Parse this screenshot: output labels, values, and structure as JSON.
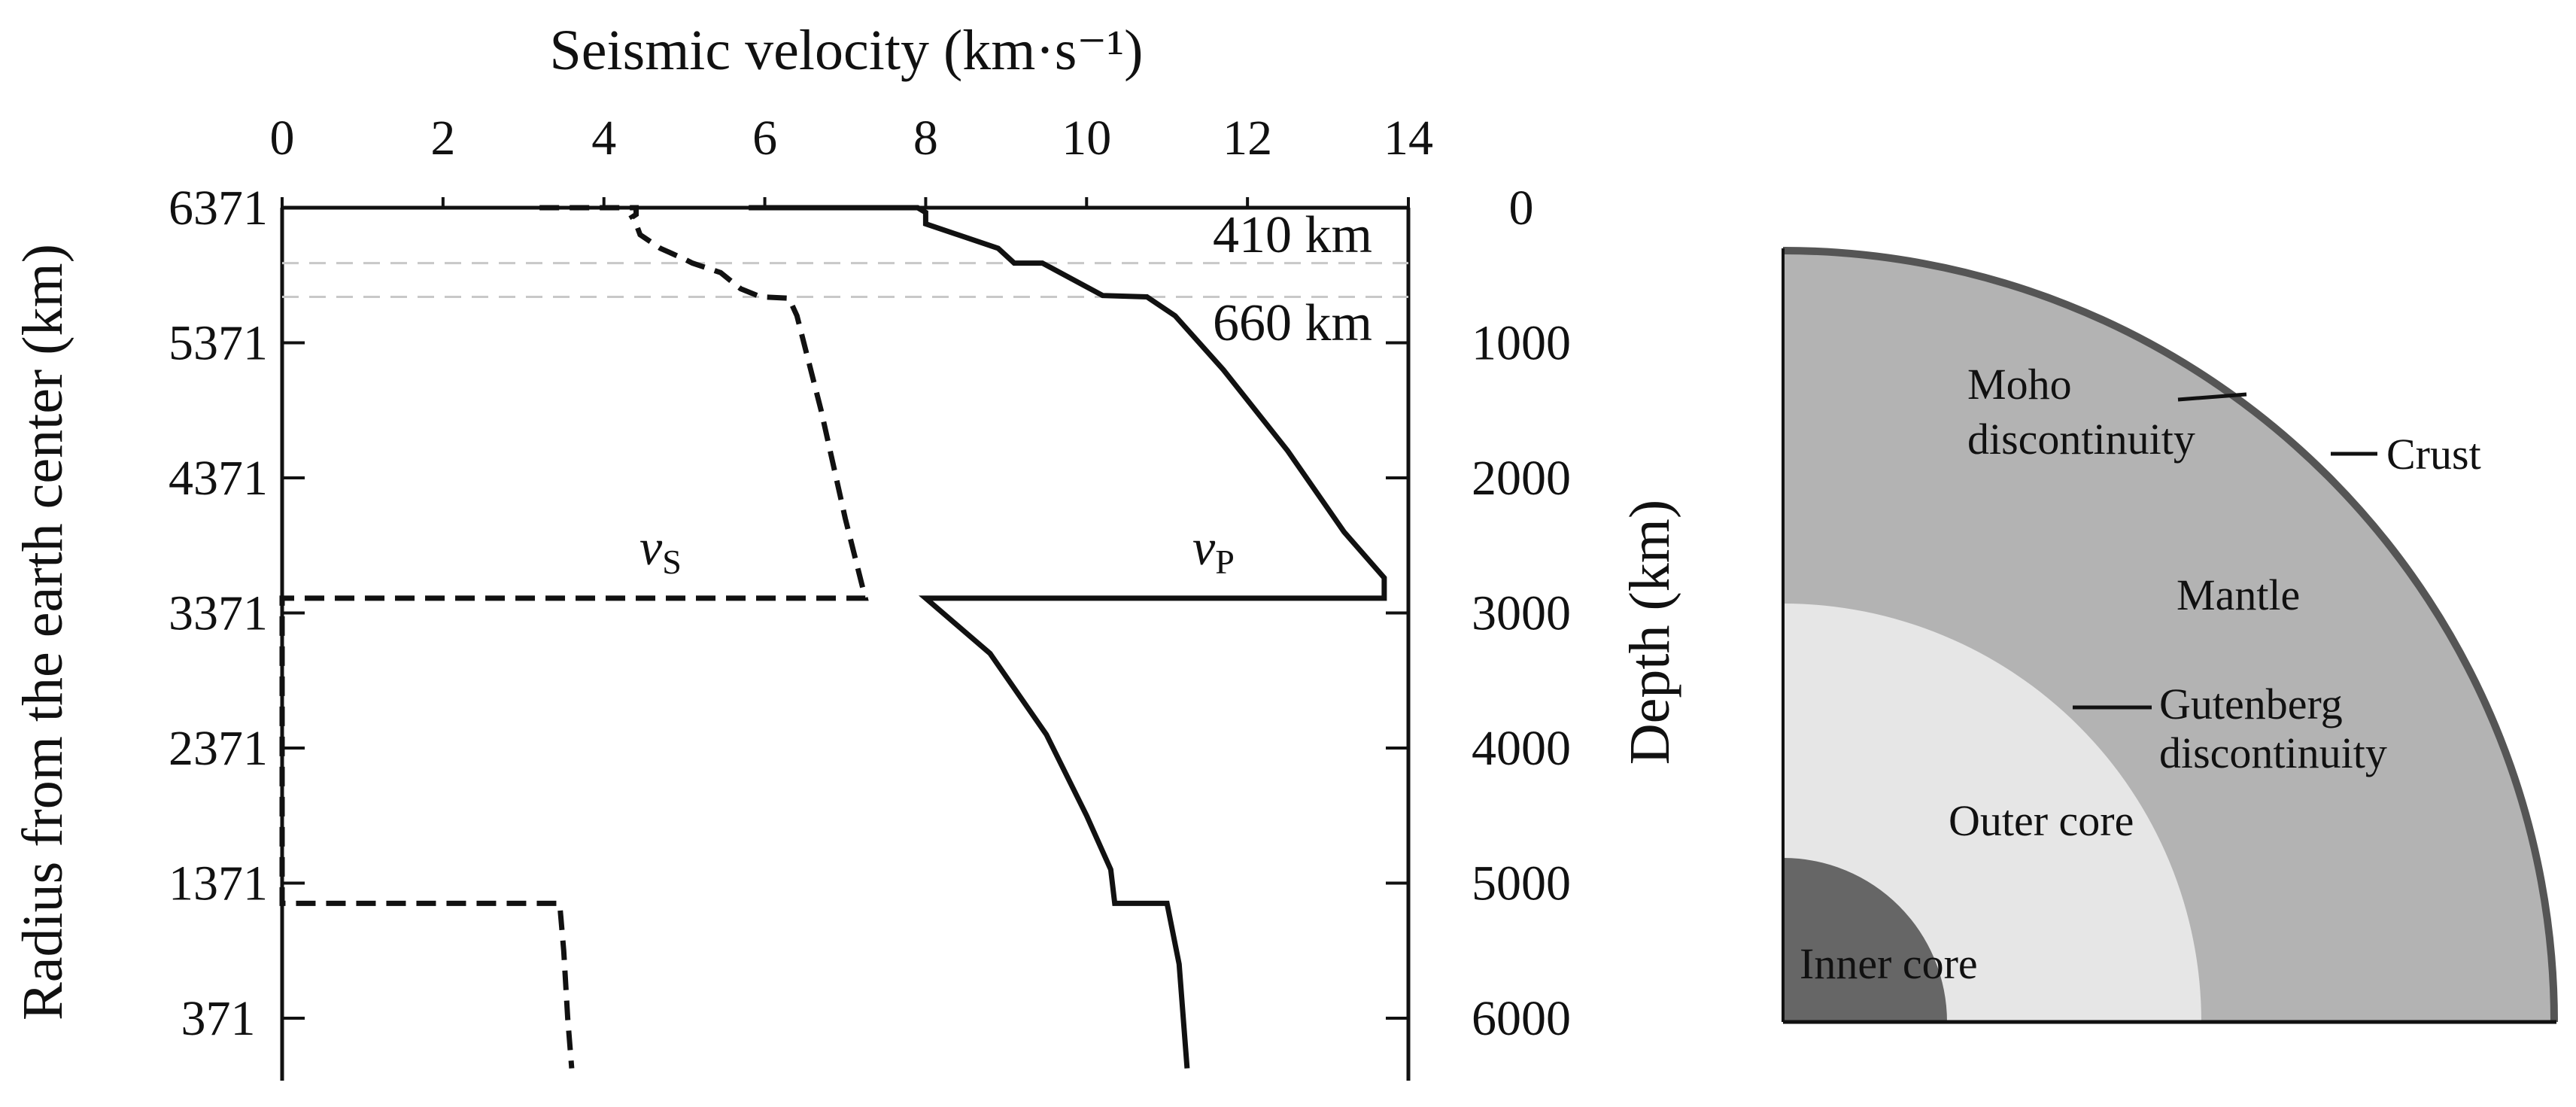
{
  "chart_data": {
    "type": "line",
    "title": "",
    "xlabel": "Seismic velocity (km·s⁻¹)",
    "ylabel_left": "Radius from the earth center (km)",
    "ylabel_right": "Depth (km)",
    "xlim": [
      0,
      14
    ],
    "x_ticks": [
      "0",
      "2",
      "4",
      "6",
      "8",
      "10",
      "12",
      "14"
    ],
    "depth_lim": [
      0,
      6371
    ],
    "left_ticks": [
      "6371",
      "5371",
      "4371",
      "3371",
      "2371",
      "1371",
      "371"
    ],
    "right_ticks": [
      "0",
      "1000",
      "2000",
      "3000",
      "4000",
      "5000",
      "6000"
    ],
    "grid": false,
    "annotations": [
      {
        "text": "410 km",
        "depth": 410
      },
      {
        "text": "660 km",
        "depth": 660
      }
    ],
    "series": [
      {
        "name": "vS",
        "symbol": "v",
        "subscript": "S",
        "style": "dashed",
        "points": [
          [
            3.2,
            0
          ],
          [
            4.4,
            0
          ],
          [
            4.4,
            20
          ],
          [
            4.4,
            50
          ],
          [
            4.35,
            70
          ],
          [
            4.4,
            120
          ],
          [
            4.45,
            200
          ],
          [
            4.7,
            300
          ],
          [
            5.0,
            380
          ],
          [
            5.1,
            410
          ],
          [
            5.45,
            480
          ],
          [
            5.7,
            600
          ],
          [
            5.95,
            660
          ],
          [
            6.3,
            670
          ],
          [
            6.4,
            800
          ],
          [
            6.7,
            1500
          ],
          [
            7.0,
            2300
          ],
          [
            7.25,
            2891
          ],
          [
            0,
            2891
          ],
          [
            0,
            5150
          ],
          [
            3.45,
            5150
          ],
          [
            3.5,
            5500
          ],
          [
            3.55,
            6000
          ],
          [
            3.6,
            6371
          ]
        ]
      },
      {
        "name": "vP",
        "symbol": "v",
        "subscript": "P",
        "style": "solid",
        "points": [
          [
            5.8,
            0
          ],
          [
            7.9,
            0
          ],
          [
            8.0,
            35
          ],
          [
            8.0,
            120
          ],
          [
            8.9,
            300
          ],
          [
            9.1,
            410
          ],
          [
            9.45,
            410
          ],
          [
            10.2,
            650
          ],
          [
            10.75,
            660
          ],
          [
            11.1,
            800
          ],
          [
            11.7,
            1200
          ],
          [
            12.5,
            1800
          ],
          [
            13.2,
            2400
          ],
          [
            13.7,
            2740
          ],
          [
            13.7,
            2891
          ],
          [
            8.0,
            2891
          ],
          [
            8.8,
            3300
          ],
          [
            9.5,
            3900
          ],
          [
            10.0,
            4500
          ],
          [
            10.3,
            4900
          ],
          [
            10.35,
            5150
          ],
          [
            11.0,
            5150
          ],
          [
            11.15,
            5600
          ],
          [
            11.25,
            6371
          ]
        ]
      }
    ]
  },
  "diagram": {
    "labels": {
      "moho": [
        "Moho",
        "discontinuity"
      ],
      "crust": "Crust",
      "mantle": "Mantle",
      "gutenberg": [
        "Gutenberg",
        "discontinuity"
      ],
      "outer_core": "Outer core",
      "inner_core": "Inner core"
    },
    "colors": {
      "mantle": "#b3b3b3",
      "outer_core": "#e6e6e6",
      "inner_core": "#666666",
      "crust_edge": "#555555"
    }
  }
}
